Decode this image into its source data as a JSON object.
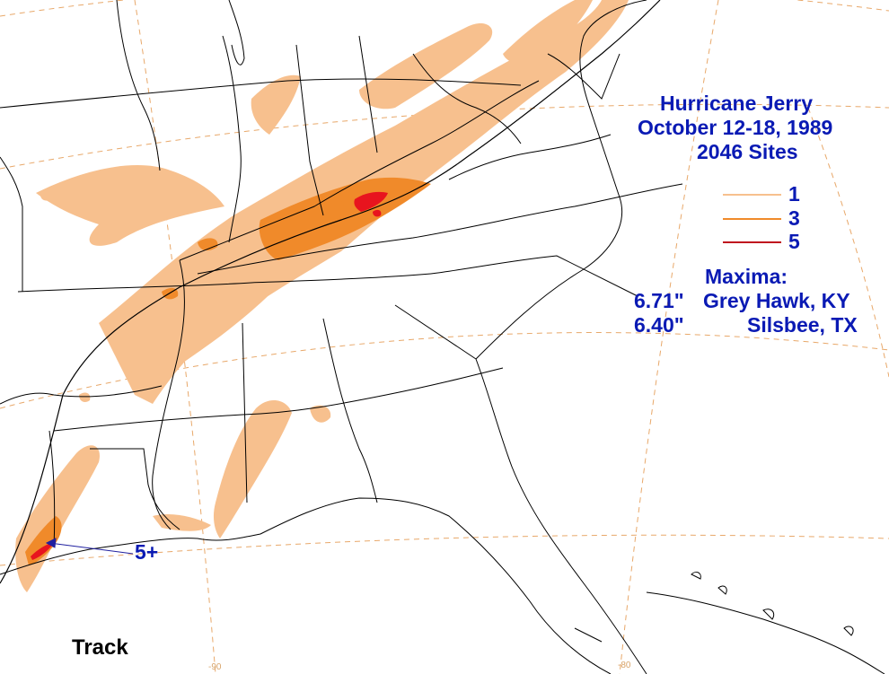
{
  "title": {
    "line1": "Hurricane Jerry",
    "line2": "October 12-18, 1989",
    "line3": "2046 Sites"
  },
  "legend": {
    "items": [
      {
        "label": "1",
        "color": "#f7c08e"
      },
      {
        "label": "3",
        "color": "#f08a2a"
      },
      {
        "label": "5",
        "color": "#c0141e"
      }
    ]
  },
  "maxima": {
    "heading": "Maxima:",
    "rows": [
      {
        "value": "6.71\"",
        "place": "Grey Hawk, KY"
      },
      {
        "value": "6.40\"",
        "place": "Silsbee, TX"
      }
    ]
  },
  "annotations": {
    "peak_label": "5+",
    "track_label": "Track"
  },
  "grid_labels": {
    "lon_90": "-90",
    "lon_80": "-80"
  },
  "colors": {
    "text": "#0a1ab4",
    "contour_1": "#f7c08e",
    "contour_3": "#f08a2a",
    "contour_5": "#e8141e",
    "graticule": "#e8a86a",
    "borders": "#000000"
  }
}
